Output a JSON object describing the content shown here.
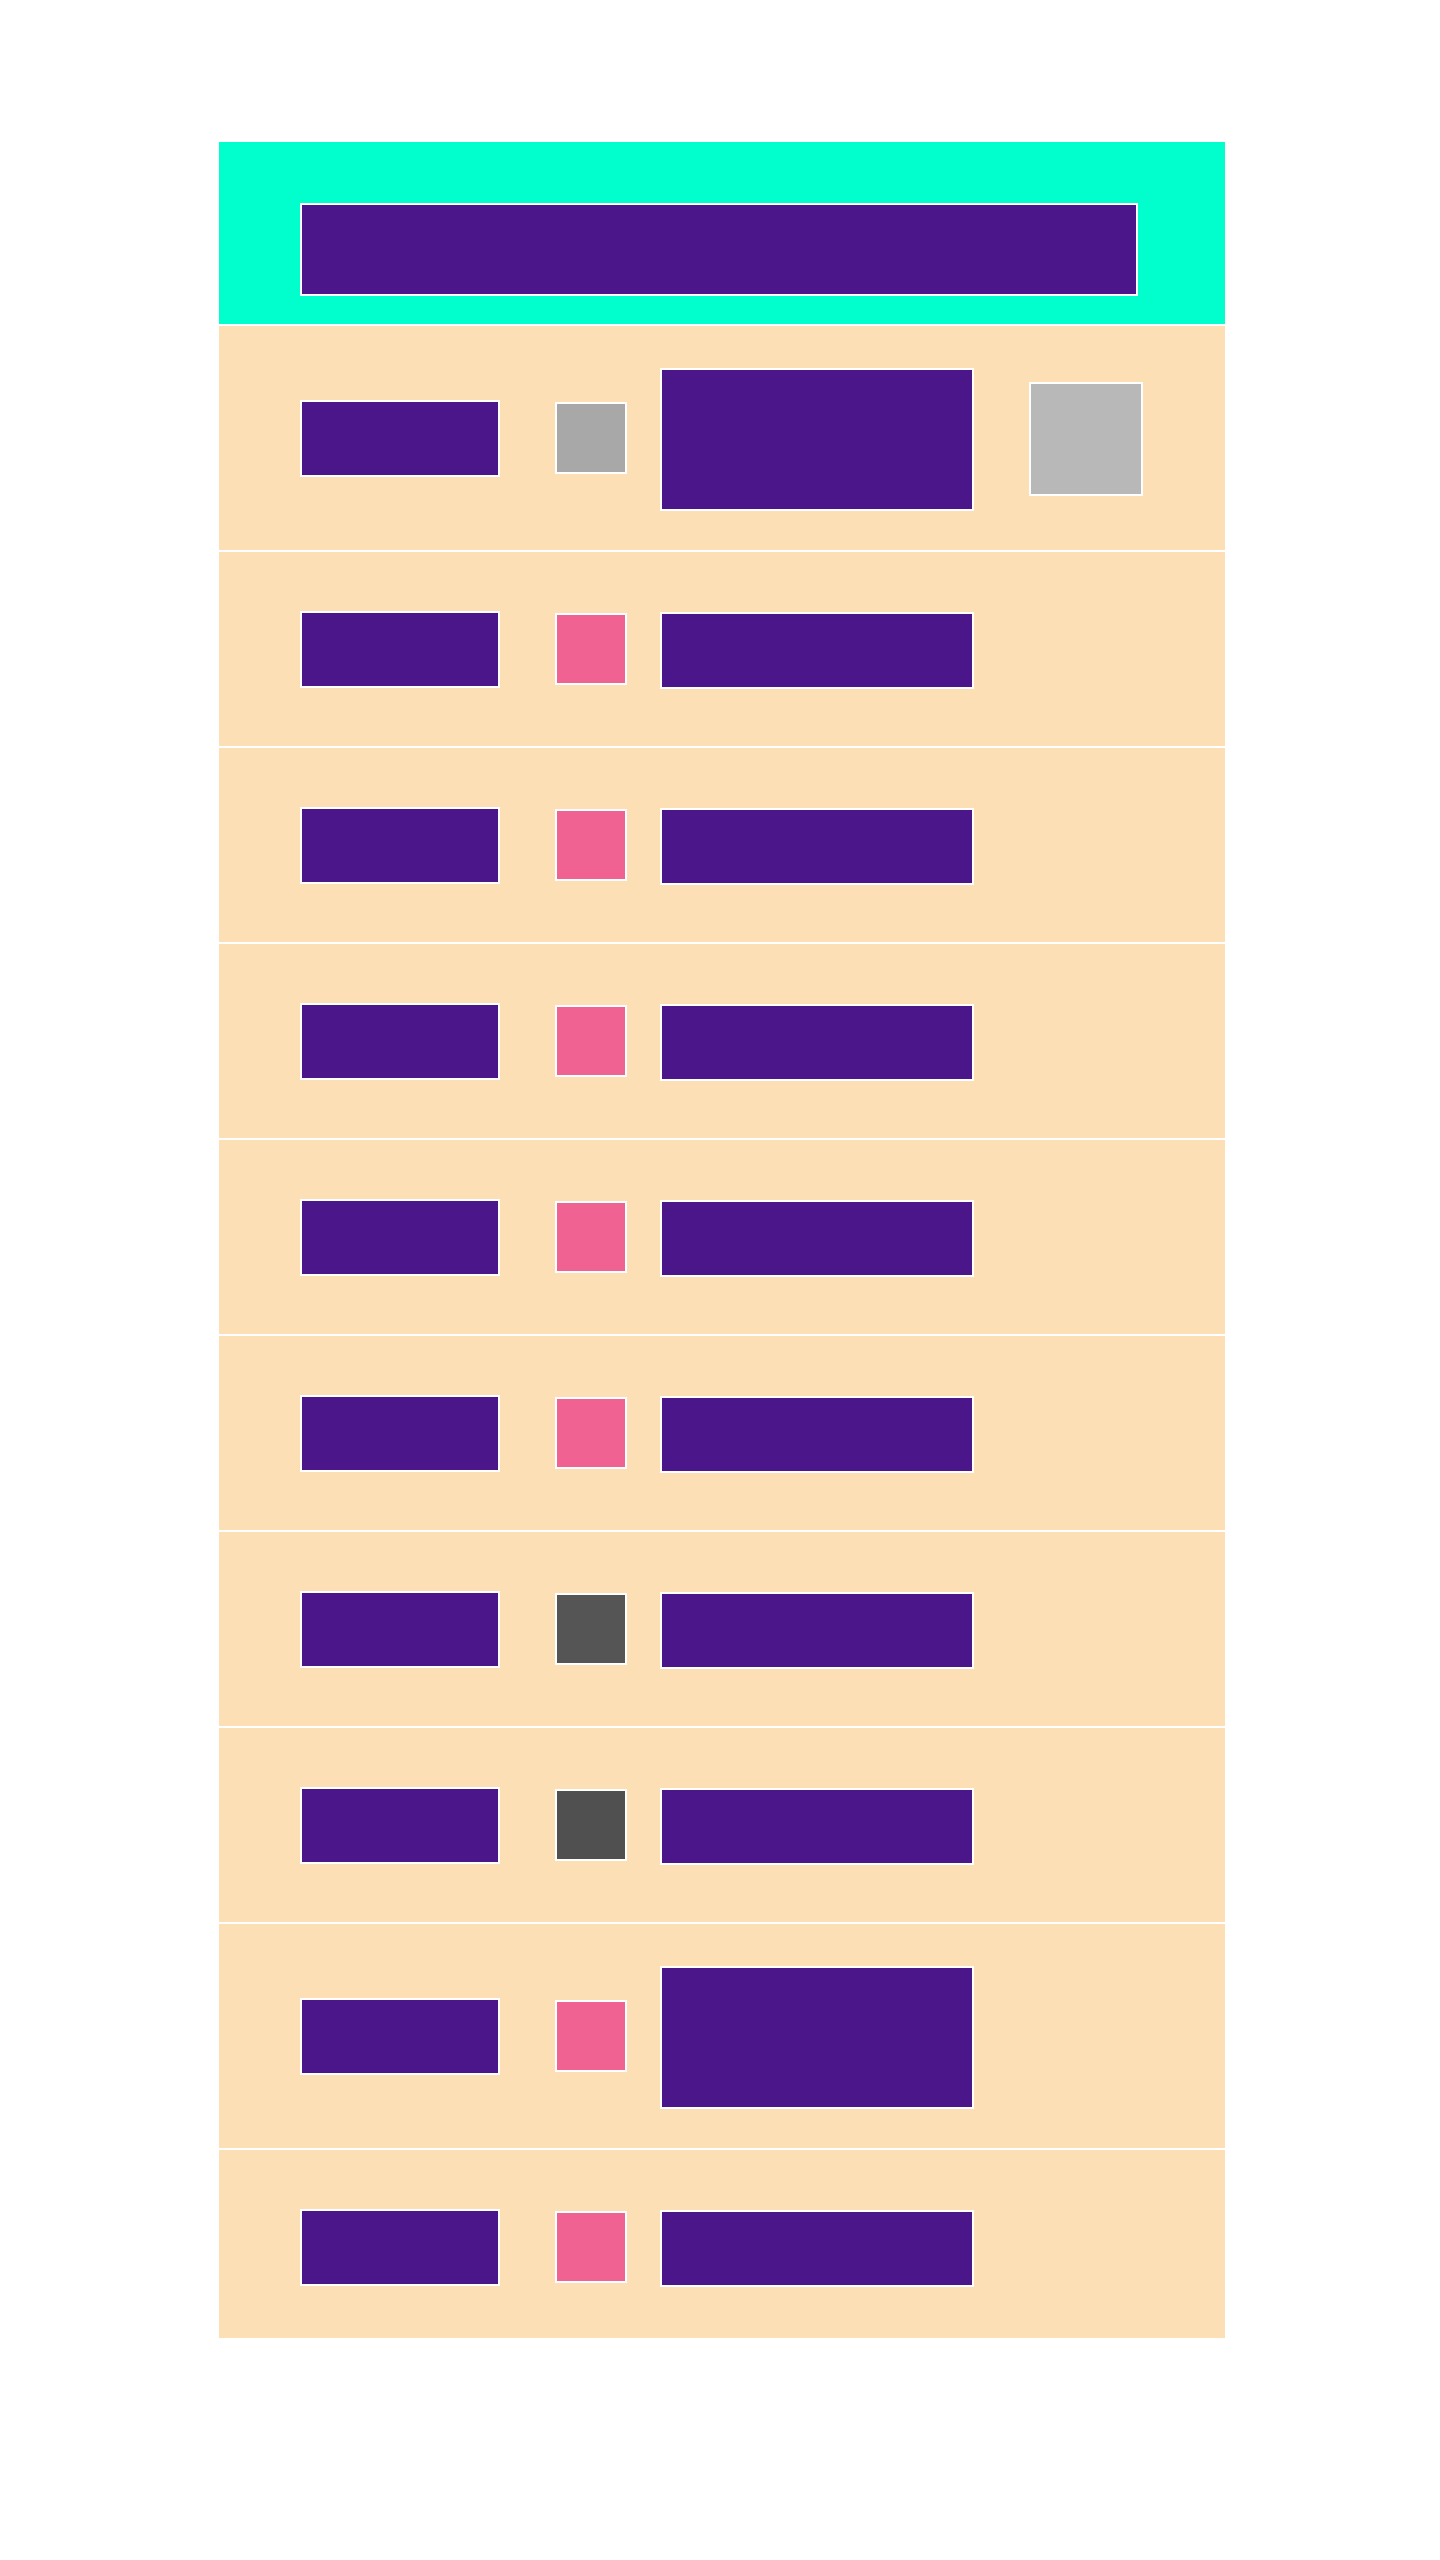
{
  "header": {
    "title": ""
  },
  "colors": {
    "header_bg": "#00ffcc",
    "panel_bg": "#fcdfb4",
    "bar": "#4a168a",
    "status_grey_light": "#a8a8a8",
    "status_pink": "#f06292",
    "status_dark": "#555555",
    "action_grey": "#b8b8b8"
  },
  "rows": [
    {
      "name": "",
      "detail": "",
      "status_color": "#a8a8a8",
      "has_action": true,
      "tall": true
    },
    {
      "name": "",
      "detail": "",
      "status_color": "#f06292",
      "has_action": false,
      "tall": false
    },
    {
      "name": "",
      "detail": "",
      "status_color": "#f06292",
      "has_action": false,
      "tall": false
    },
    {
      "name": "",
      "detail": "",
      "status_color": "#f06292",
      "has_action": false,
      "tall": false
    },
    {
      "name": "",
      "detail": "",
      "status_color": "#f06292",
      "has_action": false,
      "tall": false
    },
    {
      "name": "",
      "detail": "",
      "status_color": "#f06292",
      "has_action": false,
      "tall": false
    },
    {
      "name": "",
      "detail": "",
      "status_color": "#555555",
      "has_action": false,
      "tall": false
    },
    {
      "name": "",
      "detail": "",
      "status_color": "#505050",
      "has_action": false,
      "tall": false
    },
    {
      "name": "",
      "detail": "",
      "status_color": "#f06292",
      "has_action": false,
      "tall": true
    },
    {
      "name": "",
      "detail": "",
      "status_color": "#f06292",
      "has_action": false,
      "tall": false
    }
  ]
}
